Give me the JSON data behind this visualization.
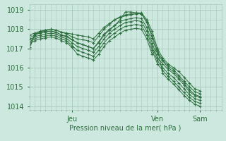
{
  "xlabel": "Pression niveau de la mer( hPa )",
  "ylim": [
    1013.8,
    1019.3
  ],
  "yticks": [
    1014,
    1015,
    1016,
    1017,
    1018,
    1019
  ],
  "xlim": [
    0,
    108
  ],
  "xtick_positions": [
    24,
    72,
    96
  ],
  "xtick_labels": [
    "Jeu",
    "Ven",
    "Sam"
  ],
  "bg_color": "#cde8df",
  "grid_color": "#a8c8bc",
  "line_color": "#2d6e3e",
  "series": [
    [
      0,
      1017.05,
      3,
      1017.75,
      6,
      1017.85,
      9,
      1017.95,
      12,
      1018.0,
      15,
      1017.95,
      18,
      1017.85,
      21,
      1017.8,
      24,
      1017.75,
      27,
      1017.7,
      30,
      1017.65,
      33,
      1017.6,
      36,
      1017.5,
      39,
      1017.8,
      42,
      1018.1,
      45,
      1018.3,
      48,
      1018.5,
      51,
      1018.65,
      54,
      1018.75,
      57,
      1018.8,
      60,
      1018.85,
      63,
      1018.85,
      66,
      1018.5,
      69,
      1017.9,
      72,
      1017.0,
      75,
      1016.5,
      78,
      1016.2,
      81,
      1016.0,
      84,
      1015.8,
      87,
      1015.5,
      90,
      1015.2,
      93,
      1014.9,
      96,
      1014.8
    ],
    [
      0,
      1017.7,
      3,
      1017.8,
      6,
      1017.9,
      9,
      1017.95,
      12,
      1018.0,
      15,
      1017.95,
      18,
      1017.85,
      21,
      1017.75,
      24,
      1017.6,
      27,
      1017.5,
      30,
      1017.45,
      33,
      1017.4,
      36,
      1017.3,
      39,
      1017.65,
      42,
      1018.0,
      45,
      1018.25,
      48,
      1018.5,
      51,
      1018.6,
      54,
      1018.7,
      57,
      1018.75,
      60,
      1018.8,
      63,
      1018.8,
      66,
      1018.4,
      69,
      1017.7,
      72,
      1016.85,
      75,
      1016.4,
      78,
      1016.1,
      81,
      1015.9,
      84,
      1015.6,
      87,
      1015.3,
      90,
      1015.0,
      93,
      1014.75,
      96,
      1014.65
    ],
    [
      0,
      1017.55,
      3,
      1017.7,
      6,
      1017.8,
      9,
      1017.85,
      12,
      1017.9,
      15,
      1017.85,
      18,
      1017.7,
      21,
      1017.6,
      24,
      1017.45,
      27,
      1017.3,
      30,
      1017.2,
      33,
      1017.1,
      36,
      1017.0,
      39,
      1017.35,
      42,
      1017.75,
      45,
      1018.0,
      48,
      1018.2,
      51,
      1018.4,
      54,
      1018.5,
      57,
      1018.55,
      60,
      1018.6,
      63,
      1018.55,
      66,
      1018.1,
      69,
      1017.3,
      72,
      1016.5,
      75,
      1016.2,
      78,
      1015.9,
      81,
      1015.7,
      84,
      1015.4,
      87,
      1015.1,
      90,
      1014.75,
      93,
      1014.55,
      96,
      1014.45
    ],
    [
      0,
      1017.45,
      3,
      1017.6,
      6,
      1017.7,
      9,
      1017.75,
      12,
      1017.8,
      15,
      1017.75,
      18,
      1017.6,
      21,
      1017.5,
      24,
      1017.3,
      27,
      1017.1,
      30,
      1017.0,
      33,
      1016.9,
      36,
      1016.8,
      39,
      1017.1,
      42,
      1017.5,
      45,
      1017.8,
      48,
      1018.0,
      51,
      1018.2,
      54,
      1018.35,
      57,
      1018.4,
      60,
      1018.45,
      63,
      1018.4,
      66,
      1017.9,
      69,
      1017.1,
      72,
      1016.35,
      75,
      1016.0,
      78,
      1015.7,
      81,
      1015.5,
      84,
      1015.2,
      87,
      1014.9,
      90,
      1014.6,
      93,
      1014.4,
      96,
      1014.3
    ],
    [
      0,
      1017.35,
      3,
      1017.5,
      6,
      1017.6,
      9,
      1017.65,
      12,
      1017.7,
      15,
      1017.65,
      18,
      1017.5,
      21,
      1017.4,
      24,
      1017.15,
      27,
      1016.9,
      30,
      1016.8,
      33,
      1016.7,
      36,
      1016.6,
      39,
      1016.9,
      42,
      1017.3,
      45,
      1017.6,
      48,
      1017.8,
      51,
      1018.0,
      54,
      1018.15,
      57,
      1018.2,
      60,
      1018.25,
      63,
      1018.2,
      66,
      1017.7,
      69,
      1016.9,
      72,
      1016.2,
      75,
      1015.85,
      78,
      1015.55,
      81,
      1015.3,
      84,
      1015.0,
      87,
      1014.7,
      90,
      1014.45,
      93,
      1014.25,
      96,
      1014.15
    ],
    [
      0,
      1017.25,
      3,
      1017.4,
      6,
      1017.5,
      9,
      1017.55,
      12,
      1017.6,
      15,
      1017.55,
      18,
      1017.4,
      21,
      1017.3,
      24,
      1017.05,
      27,
      1016.7,
      30,
      1016.6,
      33,
      1016.5,
      36,
      1016.4,
      39,
      1016.7,
      42,
      1017.1,
      45,
      1017.4,
      48,
      1017.6,
      51,
      1017.8,
      54,
      1017.95,
      57,
      1018.0,
      60,
      1018.05,
      63,
      1018.0,
      66,
      1017.5,
      69,
      1016.7,
      72,
      1017.0,
      75,
      1015.7,
      78,
      1015.4,
      81,
      1015.15,
      84,
      1014.85,
      87,
      1014.55,
      90,
      1014.3,
      93,
      1014.1,
      96,
      1014.0
    ],
    [
      0,
      1017.0,
      3,
      1017.7,
      6,
      1017.85,
      9,
      1017.9,
      12,
      1017.9,
      15,
      1017.85,
      18,
      1017.7,
      21,
      1017.65,
      24,
      1017.45,
      27,
      1017.3,
      30,
      1017.2,
      33,
      1017.1,
      36,
      1017.0,
      39,
      1017.3,
      42,
      1017.7,
      45,
      1017.95,
      48,
      1018.2,
      51,
      1018.5,
      54,
      1018.9,
      57,
      1018.9,
      60,
      1018.85,
      63,
      1018.8,
      66,
      1018.35,
      69,
      1017.55,
      72,
      1016.7,
      75,
      1016.35,
      78,
      1016.0,
      81,
      1015.8,
      84,
      1015.5,
      87,
      1015.2,
      90,
      1014.85,
      93,
      1014.6,
      96,
      1014.5
    ]
  ]
}
